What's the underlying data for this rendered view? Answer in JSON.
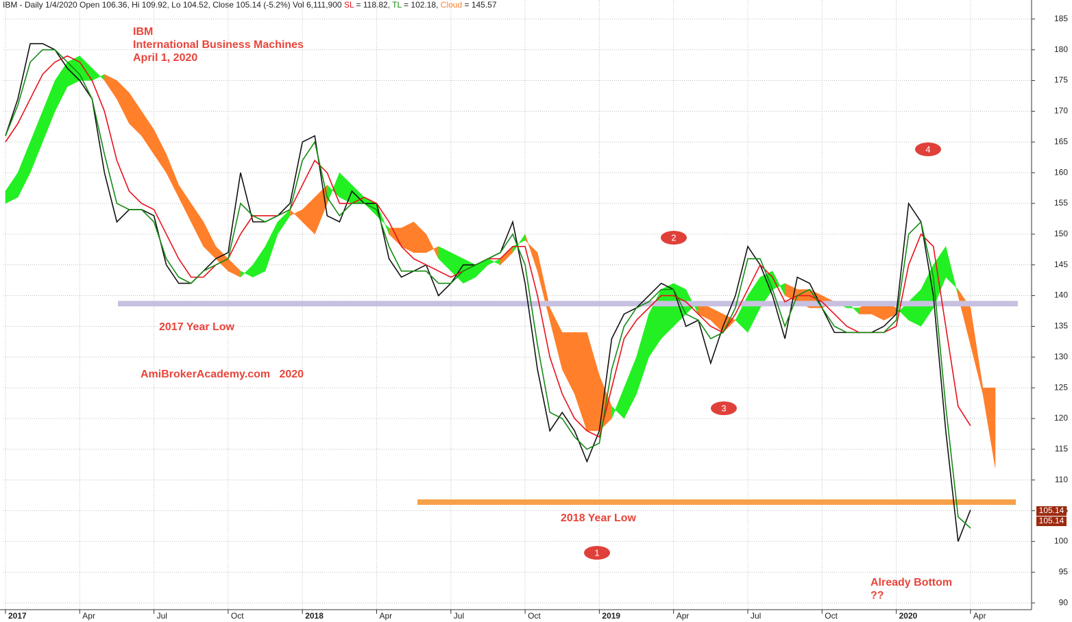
{
  "chart_data": {
    "type": "line",
    "header": {
      "prefix": "IBM - Daily 1/4/2020 Open 106.36, Hi 109.92, Lo 104.52,",
      "close": "105.14 (-5.2%) Vol 6,111,900",
      "sl": "= 118.82,",
      "tl": "= 102.18,",
      "cloud": "= 145.57"
    },
    "categories": [
      "2017",
      null,
      null,
      null,
      null,
      null,
      "Apr",
      null,
      null,
      null,
      null,
      null,
      "Jul",
      null,
      null,
      null,
      null,
      null,
      "Oct",
      null,
      null,
      null,
      null,
      null,
      "2018",
      null,
      null,
      null,
      null,
      null,
      "Apr",
      null,
      null,
      null,
      null,
      null,
      "Jul",
      null,
      null,
      null,
      null,
      null,
      "Oct",
      null,
      null,
      null,
      null,
      null,
      "2019",
      null,
      null,
      null,
      null,
      null,
      "Apr",
      null,
      null,
      null,
      null,
      null,
      "Jul",
      null,
      null,
      null,
      null,
      null,
      "Oct",
      null,
      null,
      null,
      null,
      null,
      "2020",
      null,
      null,
      null,
      null,
      null,
      "Apr",
      null,
      null
    ],
    "series": [
      {
        "name": "Close",
        "color": "#111111",
        "values": [
          166,
          172,
          181,
          181,
          180,
          177,
          175,
          172,
          160,
          152,
          154,
          154,
          153,
          145,
          142,
          142,
          144,
          146,
          147,
          160,
          152,
          152,
          153,
          155,
          165,
          166,
          153,
          152,
          157,
          155,
          155,
          146,
          143,
          144,
          145,
          140,
          142,
          145,
          145,
          146,
          147,
          152,
          142,
          128,
          118,
          121,
          118,
          113,
          118,
          133,
          137,
          138,
          140,
          142,
          141,
          135,
          136,
          129,
          135,
          140,
          148,
          145,
          140,
          133,
          143,
          142,
          138,
          134,
          134,
          134,
          134,
          135,
          137,
          155,
          152,
          140,
          118,
          100,
          105.14,
          null,
          null
        ]
      },
      {
        "name": "SL",
        "color": "#e8101a",
        "values": [
          165,
          168,
          172,
          176,
          178,
          179,
          178,
          175,
          170,
          162,
          157,
          155,
          154,
          150,
          146,
          143,
          143,
          145,
          146,
          150,
          153,
          153,
          153,
          154,
          158,
          162,
          160,
          155,
          155,
          156,
          155,
          152,
          148,
          146,
          145,
          144,
          143,
          144,
          145,
          146,
          146,
          148,
          148,
          140,
          130,
          124,
          120,
          118,
          117,
          125,
          133,
          136,
          138,
          140,
          140,
          139,
          137,
          135,
          134,
          137,
          141,
          145,
          143,
          139,
          140,
          140,
          139,
          137,
          135,
          134,
          134,
          134,
          135,
          145,
          150,
          148,
          135,
          122,
          118.82,
          null,
          null
        ]
      },
      {
        "name": "TL",
        "color": "#138a13",
        "values": [
          166,
          171,
          178,
          180,
          180,
          178,
          176,
          172,
          163,
          155,
          154,
          154,
          152,
          146,
          143,
          142,
          144,
          145,
          146,
          155,
          153,
          152,
          153,
          154,
          162,
          165,
          156,
          153,
          155,
          155,
          154,
          148,
          144,
          144,
          144,
          142,
          142,
          144,
          145,
          146,
          147,
          150,
          145,
          132,
          121,
          120,
          117,
          115,
          116,
          128,
          135,
          138,
          139,
          141,
          141,
          137,
          136,
          133,
          134,
          138,
          146,
          146,
          141,
          135,
          140,
          141,
          138,
          135,
          134,
          134,
          134,
          134,
          136,
          150,
          152,
          143,
          122,
          104,
          102.18,
          null,
          null
        ]
      }
    ],
    "cloud": {
      "name": "Cloud",
      "up_color": "#22f022",
      "down_color": "#ff7f2a",
      "span_a": [
        157,
        160,
        165,
        170,
        175,
        178,
        179,
        177,
        175,
        172,
        168,
        166,
        163,
        160,
        156,
        152,
        148,
        146,
        144,
        143,
        145,
        148,
        152,
        154,
        152,
        150,
        155,
        160,
        158,
        156,
        155,
        150,
        148,
        147,
        147,
        148,
        147,
        146,
        145,
        146,
        145,
        147,
        150,
        144,
        136,
        128,
        124,
        118,
        118,
        120,
        125,
        130,
        137,
        141,
        142,
        141,
        137,
        136,
        134,
        136,
        140,
        143,
        144,
        140,
        139,
        138,
        138,
        139,
        139,
        137,
        137,
        136,
        137,
        139,
        141,
        145,
        148,
        140,
        132,
        124,
        112
      ],
      "span_b": [
        155,
        156,
        160,
        165,
        170,
        174,
        175,
        175,
        176,
        175,
        173,
        170,
        167,
        163,
        158,
        155,
        152,
        148,
        146,
        144,
        143,
        144,
        150,
        153,
        154,
        156,
        158,
        156,
        155,
        155,
        153,
        151,
        151,
        152,
        150,
        146,
        144,
        142,
        143,
        145,
        146,
        148,
        149,
        147,
        138,
        134,
        134,
        134,
        127,
        122,
        120,
        124,
        130,
        133,
        135,
        137,
        139,
        138,
        137,
        136,
        134,
        138,
        141,
        142,
        141,
        141,
        140,
        139,
        138,
        138,
        139,
        139,
        138,
        136,
        135,
        138,
        143,
        141,
        138,
        125,
        125
      ]
    },
    "levels": [
      {
        "value": 138.7,
        "color": "#c8c0e0"
      },
      {
        "value": 106.4,
        "color": "#f7a04a"
      }
    ],
    "annotations": [
      "IBM",
      "International Business Machines",
      "April 1, 2020",
      "2017 Year Low",
      "AmiBrokerAcademy.com   2020",
      "2018 Year Low",
      "Already Bottom",
      "??"
    ],
    "markers": [
      "1",
      "2",
      "3",
      "4"
    ],
    "price_tags": [
      "105.14",
      "105.14"
    ],
    "ylim": [
      88.9,
      188.1
    ],
    "yticks": [
      90,
      95,
      100,
      105,
      110,
      115,
      120,
      125,
      130,
      135,
      140,
      145,
      150,
      155,
      160,
      165,
      170,
      175,
      180,
      185
    ],
    "grid": true
  }
}
